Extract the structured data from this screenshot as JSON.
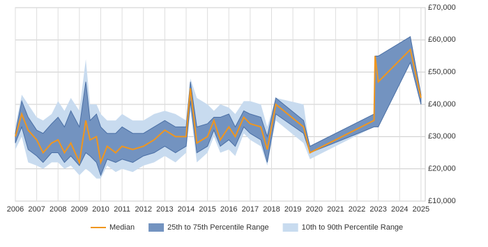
{
  "chart_data": {
    "type": "line",
    "x": [
      2006.0,
      2006.3,
      2006.6,
      2007.0,
      2007.3,
      2007.7,
      2008.0,
      2008.3,
      2008.6,
      2009.0,
      2009.3,
      2009.5,
      2009.8,
      2010.0,
      2010.3,
      2010.7,
      2011.0,
      2011.5,
      2012.0,
      2012.5,
      2013.0,
      2013.5,
      2014.0,
      2014.2,
      2014.5,
      2015.0,
      2015.3,
      2015.6,
      2016.0,
      2016.3,
      2016.7,
      2017.0,
      2017.5,
      2017.8,
      2018.2,
      2019.5,
      2019.8,
      2022.8,
      2022.85,
      2023.0,
      2024.5,
      2025.0
    ],
    "series": [
      {
        "name": "Median",
        "color": "#f0961e",
        "values": [
          30000,
          37000,
          32000,
          29000,
          25000,
          28000,
          29000,
          25000,
          28000,
          22000,
          35000,
          29000,
          30000,
          22000,
          27000,
          25000,
          27000,
          26000,
          27000,
          29000,
          32000,
          30000,
          30000,
          45000,
          28000,
          30000,
          35000,
          29000,
          33000,
          30000,
          36000,
          34000,
          33000,
          26000,
          40000,
          33000,
          25000,
          35000,
          55000,
          47000,
          57000,
          42000
        ]
      },
      {
        "name": "25th to 75th Percentile Range",
        "color": "#7393c0",
        "low": [
          28000,
          33000,
          26000,
          24000,
          22000,
          25000,
          25000,
          22000,
          24000,
          21000,
          25000,
          24000,
          22000,
          18000,
          23000,
          22000,
          23000,
          22000,
          24000,
          25000,
          27000,
          25000,
          27000,
          41000,
          25000,
          27000,
          32000,
          27000,
          29000,
          27000,
          33000,
          31000,
          29000,
          22000,
          37000,
          31000,
          25000,
          33000,
          33000,
          33000,
          53000,
          40000
        ],
        "high": [
          31000,
          41000,
          36000,
          32000,
          31000,
          34000,
          36000,
          33000,
          38000,
          33000,
          47000,
          35000,
          37000,
          33000,
          31000,
          31000,
          33000,
          31000,
          31000,
          33000,
          35000,
          33000,
          33000,
          47000,
          33000,
          34000,
          36000,
          36000,
          37000,
          33000,
          38000,
          37000,
          36000,
          30000,
          42000,
          35000,
          27000,
          37000,
          55000,
          55000,
          61000,
          43000
        ]
      },
      {
        "name": "10th to 90th Percentile Range",
        "color": "#c8dbef",
        "low": [
          26000,
          30000,
          22000,
          21000,
          20000,
          22000,
          22000,
          20000,
          21000,
          18000,
          20000,
          19000,
          17000,
          17000,
          21000,
          19000,
          20000,
          19000,
          21000,
          22000,
          24000,
          22000,
          25000,
          38000,
          22000,
          25000,
          30000,
          25000,
          26000,
          24000,
          31000,
          29000,
          27000,
          21000,
          35000,
          28000,
          23000,
          33000,
          33000,
          33000,
          53000,
          40000
        ],
        "high": [
          33000,
          43000,
          40000,
          36000,
          35000,
          37000,
          41000,
          38000,
          42000,
          38000,
          54000,
          40000,
          40000,
          37000,
          35000,
          35000,
          37000,
          35000,
          35000,
          37000,
          38000,
          37000,
          35000,
          48000,
          42000,
          40000,
          38000,
          40000,
          39000,
          37000,
          41000,
          41000,
          40000,
          33000,
          42000,
          40000,
          26000,
          37000,
          55000,
          55000,
          61000,
          43000
        ]
      }
    ],
    "xlim": [
      2006,
      2025.2
    ],
    "xticks": [
      2006,
      2007,
      2008,
      2009,
      2010,
      2011,
      2012,
      2013,
      2014,
      2015,
      2016,
      2017,
      2018,
      2019,
      2020,
      2021,
      2022,
      2023,
      2024,
      2025
    ],
    "ylim": [
      10000,
      70000
    ],
    "yticks": [
      {
        "value": 10000,
        "label": "£10,000"
      },
      {
        "value": 20000,
        "label": "£20,000"
      },
      {
        "value": 30000,
        "label": "£30,000"
      },
      {
        "value": 40000,
        "label": "£40,000"
      },
      {
        "value": 50000,
        "label": "£50,000"
      },
      {
        "value": 60000,
        "label": "£60,000"
      },
      {
        "value": 70000,
        "label": "£70,000"
      }
    ],
    "grid": true,
    "legend": "bottom"
  }
}
